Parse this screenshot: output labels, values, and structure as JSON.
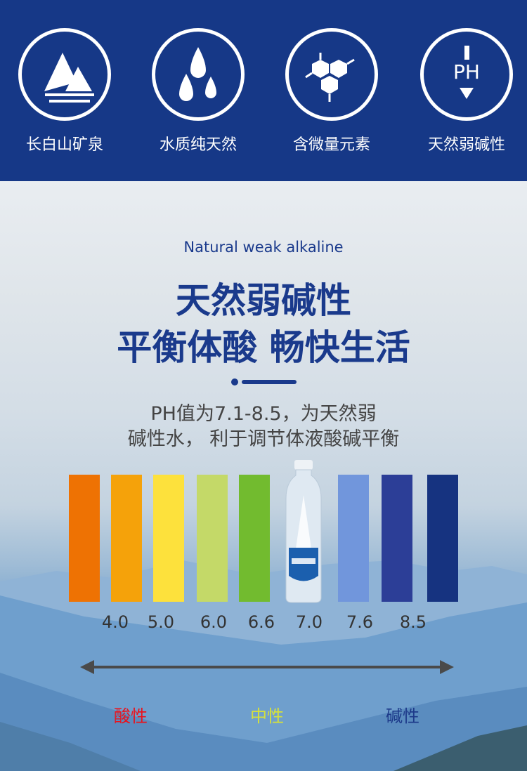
{
  "features": [
    {
      "label": "长白山矿泉",
      "icon": "mountain-icon"
    },
    {
      "label": "水质纯天然",
      "icon": "water-drops-icon"
    },
    {
      "label": "含微量元素",
      "icon": "molecule-icon"
    },
    {
      "label": "天然弱碱性",
      "icon": "ph-icon",
      "icon_text": "PH"
    }
  ],
  "hero": {
    "subtitle_en": "Natural weak alkaline",
    "title_line1": "天然弱碱性",
    "title_line2": "平衡体酸 畅快生活",
    "desc_line1": "PH值为7.1-8.5，为天然弱",
    "desc_line2": "碱性水， 利于调节体液酸碱平衡"
  },
  "ph_scale": {
    "bar_colors": [
      "#ee7203",
      "#f5a20a",
      "#fde13c",
      "#c4d968",
      "#72bb2f",
      "#7196dc",
      "#2c3e97",
      "#163380"
    ],
    "ticks": [
      "4.0",
      "5.0",
      "6.0",
      "6.6",
      "7.0",
      "7.6",
      "8.5"
    ],
    "zones": [
      {
        "label": "酸性",
        "color": "#e8141e"
      },
      {
        "label": "中性",
        "color": "#d5e03c"
      },
      {
        "label": "碱性",
        "color": "#1d3a8a"
      }
    ]
  },
  "colors": {
    "brand": "#163887"
  }
}
